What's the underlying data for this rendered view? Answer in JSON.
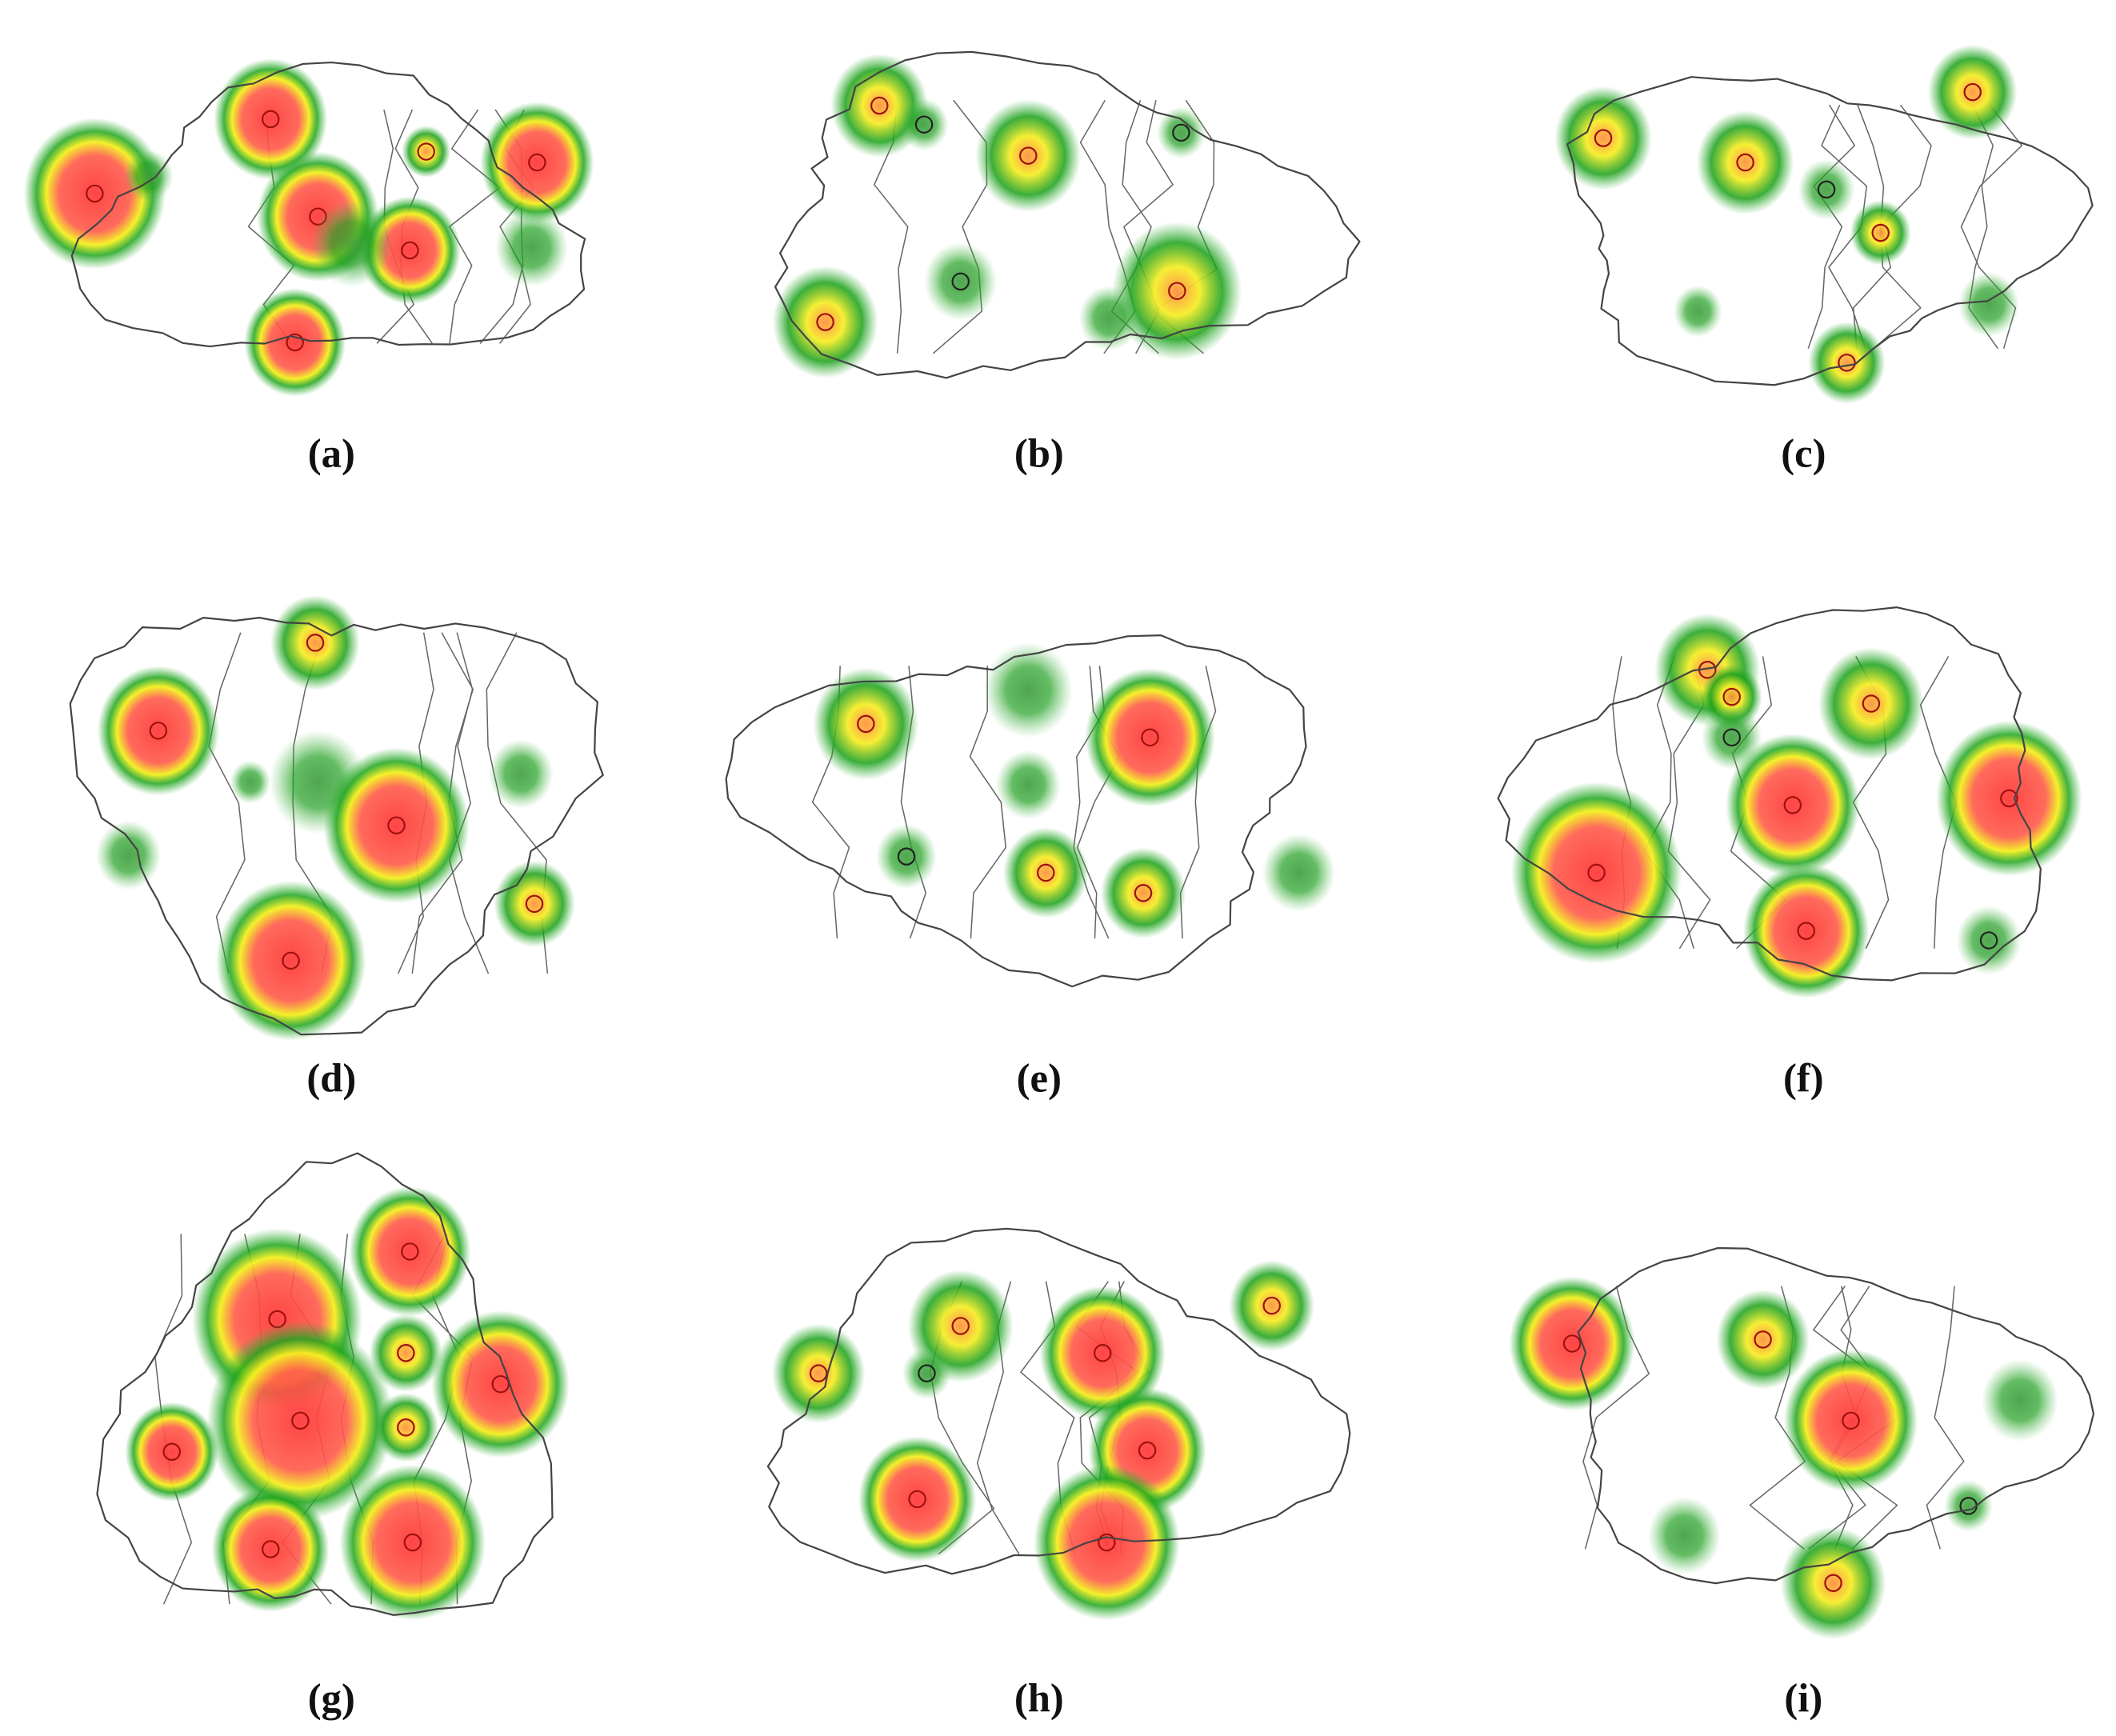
{
  "panels": [
    {
      "label": "(a)"
    },
    {
      "label": "(b)"
    },
    {
      "label": "(c)"
    },
    {
      "label": "(d)"
    },
    {
      "label": "(e)"
    },
    {
      "label": "(f)"
    },
    {
      "label": "(g)"
    },
    {
      "label": "(h)"
    },
    {
      "label": "(i)"
    }
  ]
}
